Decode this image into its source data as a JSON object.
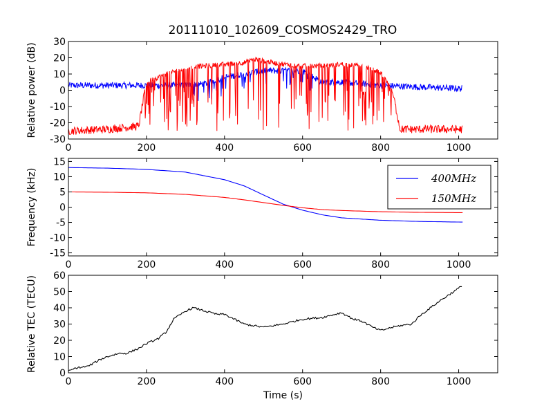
{
  "figure_title": "20111010_102609_COSMOS2429_TRO",
  "chart_data": [
    {
      "id": "power",
      "type": "line",
      "ylabel": "Relative power (dB)",
      "xlabel": "",
      "xlim": [
        0,
        1100
      ],
      "ylim": [
        -30,
        30
      ],
      "xticks": [
        "0",
        "200",
        "400",
        "600",
        "800",
        "1000"
      ],
      "yticks": [
        "30",
        "20",
        "10",
        "0",
        "-10",
        "-20",
        "-30"
      ],
      "grid": false,
      "series": [
        {
          "color": "#0000ff",
          "note_envelope": "approximate envelope of noisy signal",
          "x": [
            0,
            100,
            200,
            300,
            350,
            400,
            450,
            500,
            550,
            600,
            650,
            700,
            750,
            800,
            900,
            1010
          ],
          "y": [
            3,
            3,
            3,
            3,
            4,
            8,
            10,
            12,
            12,
            12,
            5,
            5,
            4,
            3,
            2,
            1
          ]
        },
        {
          "color": "#ff0000",
          "x": [
            0,
            100,
            180,
            200,
            250,
            300,
            350,
            400,
            450,
            480,
            500,
            550,
            600,
            650,
            700,
            750,
            800,
            830,
            850,
            900,
            1010
          ],
          "y": [
            -25,
            -24,
            -22,
            5,
            10,
            14,
            15,
            16,
            17,
            19,
            18,
            16,
            15,
            15,
            16,
            15,
            11,
            0,
            -24,
            -24,
            -24
          ]
        }
      ]
    },
    {
      "id": "frequency",
      "type": "line",
      "ylabel": "Frequency (kHz)",
      "xlabel": "",
      "xlim": [
        0,
        1100
      ],
      "ylim": [
        -16,
        16
      ],
      "xticks": [
        "0",
        "200",
        "400",
        "600",
        "800",
        "1000"
      ],
      "yticks": [
        "15",
        "10",
        "5",
        "0",
        "-5",
        "-10",
        "-15"
      ],
      "legend": {
        "placement": "upper right"
      },
      "series": [
        {
          "name": "400MHz",
          "color": "#0000ff",
          "x": [
            0,
            100,
            200,
            300,
            400,
            450,
            500,
            550,
            600,
            650,
            700,
            800,
            900,
            1010
          ],
          "y": [
            13,
            12.8,
            12.4,
            11.5,
            9,
            7,
            4,
            1,
            -1,
            -2.5,
            -3.5,
            -4.3,
            -4.7,
            -4.9
          ]
        },
        {
          "name": "150MHz",
          "color": "#ff0000",
          "x": [
            0,
            100,
            200,
            300,
            400,
            450,
            500,
            550,
            600,
            650,
            700,
            800,
            900,
            1010
          ],
          "y": [
            5,
            4.9,
            4.7,
            4.2,
            3.2,
            2.4,
            1.5,
            0.6,
            -0.2,
            -0.8,
            -1.1,
            -1.5,
            -1.7,
            -1.8
          ]
        }
      ]
    },
    {
      "id": "tec",
      "type": "line",
      "ylabel": "Relative TEC (TECU)",
      "xlabel": "Time (s)",
      "xlim": [
        0,
        1100
      ],
      "ylim": [
        0,
        60
      ],
      "xticks": [
        "0",
        "200",
        "400",
        "600",
        "800",
        "1000"
      ],
      "yticks": [
        "60",
        "50",
        "40",
        "30",
        "20",
        "10",
        "0"
      ],
      "series": [
        {
          "color": "#000000",
          "x": [
            0,
            20,
            50,
            80,
            100,
            130,
            150,
            180,
            200,
            230,
            250,
            270,
            300,
            320,
            350,
            380,
            400,
            450,
            500,
            550,
            600,
            650,
            700,
            730,
            750,
            780,
            800,
            830,
            850,
            880,
            900,
            950,
            1000,
            1010
          ],
          "y": [
            1,
            3,
            4,
            8,
            10,
            12,
            12,
            15,
            18,
            21,
            25,
            33,
            38,
            40,
            38,
            36,
            36,
            30,
            28,
            30,
            33,
            34,
            37,
            33,
            32,
            28,
            26,
            28,
            29,
            30,
            35,
            44,
            52,
            54
          ]
        }
      ]
    }
  ]
}
